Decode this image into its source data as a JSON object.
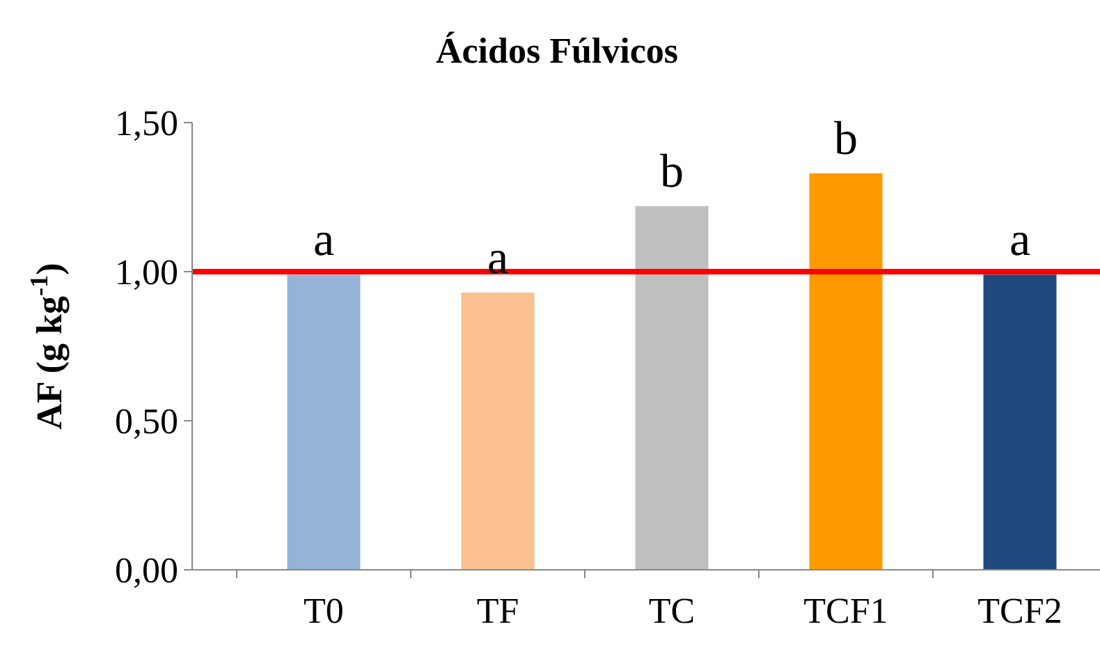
{
  "chart_data": {
    "type": "bar",
    "title": "Ácidos Fúlvicos",
    "ylabel": "AF (g kg$^{-1}$)",
    "categories": [
      "T0",
      "TF",
      "TC",
      "TCF1",
      "TCF2"
    ],
    "values": [
      0.99,
      0.93,
      1.22,
      1.33,
      0.99
    ],
    "colors": [
      "#95b3d7",
      "#fac090",
      "#bfbfbf",
      "#ff9900",
      "#1f497d"
    ],
    "ylim": [
      0,
      1.5
    ],
    "yticks": [
      {
        "value": 0,
        "label": "0,00"
      },
      {
        "value": 0.5,
        "label": "0,50"
      },
      {
        "value": 1,
        "label": "1,00"
      },
      {
        "value": 1.5,
        "label": "1,50"
      }
    ],
    "grid": false,
    "ref_lines": [
      {
        "axis": "y",
        "value": 1,
        "color": "#ff0000"
      }
    ],
    "annotations": [
      {
        "text": "a",
        "x": "T0",
        "y": 0.99
      },
      {
        "text": "a",
        "x": "TF",
        "y": 0.93
      },
      {
        "text": "b",
        "x": "TC",
        "y": 1.22
      },
      {
        "text": "b",
        "x": "TCF1",
        "y": 1.33
      },
      {
        "text": "a",
        "x": "TCF2",
        "y": 0.99
      }
    ]
  }
}
